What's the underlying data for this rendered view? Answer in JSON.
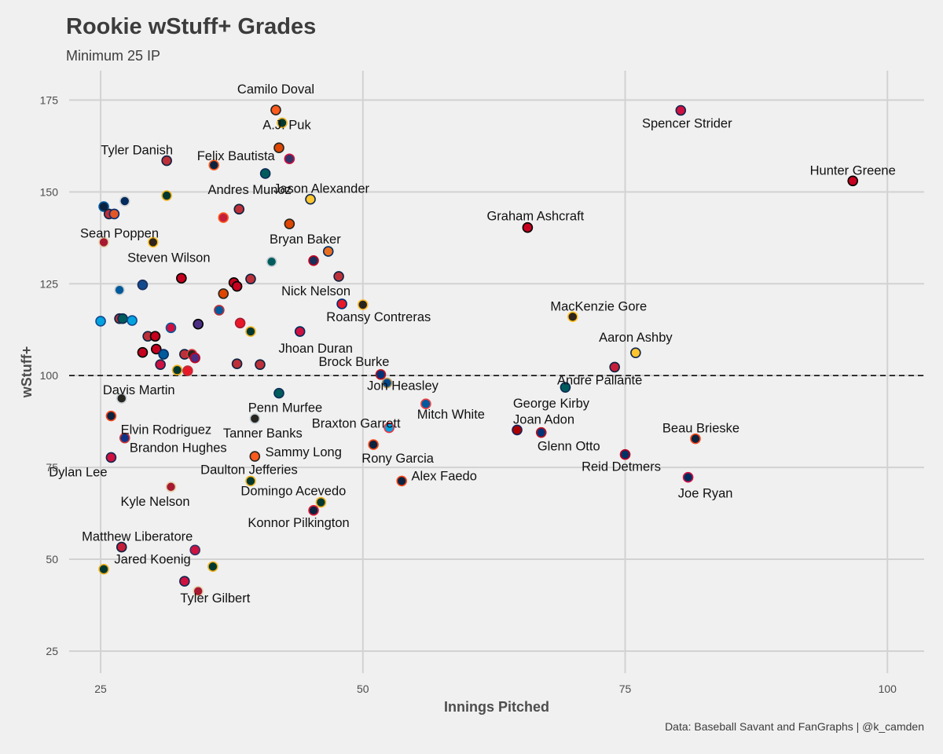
{
  "title": "Rookie wStuff+ Grades",
  "subtitle": "Minimum 25 IP",
  "caption": "Data: Baseball Savant and FanGraphs | @k_camden",
  "chart_data": {
    "type": "scatter",
    "xlabel": "Innings Pitched",
    "ylabel": "wStuff+",
    "xlim": [
      22,
      103.5
    ],
    "ylim": [
      19,
      183
    ],
    "x_ticks": [
      25,
      50,
      75,
      100
    ],
    "y_ticks": [
      25,
      50,
      75,
      100,
      125,
      150,
      175
    ],
    "reference_line": {
      "y": 100,
      "style": "dashed"
    },
    "grid": true,
    "points": [
      {
        "name": "Camilo Doval",
        "x": 41.7,
        "y": 172.3,
        "fill": "#fd5a1e",
        "stroke": "#27251f"
      },
      {
        "name": "A.J. Puk",
        "x": 42.3,
        "y": 168.8,
        "fill": "#003831",
        "stroke": "#efb21e"
      },
      {
        "name": "",
        "x": 42.0,
        "y": 162.0,
        "fill": "#df4601",
        "stroke": "#27251f"
      },
      {
        "name": "",
        "x": 43.0,
        "y": 159.0,
        "fill": "#333366",
        "stroke": "#ce1141"
      },
      {
        "name": "Tyler Danish",
        "x": 31.3,
        "y": 158.5,
        "fill": "#bd3039",
        "stroke": "#0c2340"
      },
      {
        "name": "Felix Bautista",
        "x": 35.8,
        "y": 157.3,
        "fill": "#0c2340",
        "stroke": "#fd5a1e"
      },
      {
        "name": "Andres Munoz",
        "x": 40.7,
        "y": 155.0,
        "fill": "#005c5c",
        "stroke": "#0c2c56"
      },
      {
        "name": "Spencer Strider",
        "x": 80.3,
        "y": 172.2,
        "fill": "#ce1141",
        "stroke": "#13274f"
      },
      {
        "name": "Hunter Greene",
        "x": 96.7,
        "y": 153.0,
        "fill": "#c6011f",
        "stroke": "#000000"
      },
      {
        "name": "",
        "x": 27.3,
        "y": 147.5,
        "fill": "#002b5c",
        "stroke": "#d0d0d0"
      },
      {
        "name": "",
        "x": 31.3,
        "y": 149.0,
        "fill": "#003831",
        "stroke": "#efb21e"
      },
      {
        "name": "Jason Alexander",
        "x": 45.0,
        "y": 148.0,
        "fill": "#ffc52f",
        "stroke": "#12284b"
      },
      {
        "name": "",
        "x": 25.3,
        "y": 146.0,
        "fill": "#0c2340",
        "stroke": "#005a9c"
      },
      {
        "name": "",
        "x": 25.8,
        "y": 144.0,
        "fill": "#bd3039",
        "stroke": "#0c2340"
      },
      {
        "name": "",
        "x": 26.3,
        "y": 144.0,
        "fill": "#e35625",
        "stroke": "#002d72"
      },
      {
        "name": "",
        "x": 38.2,
        "y": 145.3,
        "fill": "#bd3039",
        "stroke": "#0c2340"
      },
      {
        "name": "",
        "x": 36.7,
        "y": 143.0,
        "fill": "#c41e3a",
        "stroke": "#fd5a1e"
      },
      {
        "name": "Bryan Baker",
        "x": 43.0,
        "y": 141.3,
        "fill": "#df4601",
        "stroke": "#27251f"
      },
      {
        "name": "Graham Ashcraft",
        "x": 65.7,
        "y": 140.3,
        "fill": "#c6011f",
        "stroke": "#000000"
      },
      {
        "name": "Sean Poppen",
        "x": 25.3,
        "y": 136.3,
        "fill": "#a71930",
        "stroke": "#e3d4ad"
      },
      {
        "name": "Steven Wilson",
        "x": 30.0,
        "y": 136.3,
        "fill": "#2f241d",
        "stroke": "#ffc425"
      },
      {
        "name": "",
        "x": 46.7,
        "y": 133.8,
        "fill": "#eb6e1f",
        "stroke": "#002d62"
      },
      {
        "name": "",
        "x": 45.3,
        "y": 131.3,
        "fill": "#1a2e5a",
        "stroke": "#c6011f"
      },
      {
        "name": "",
        "x": 41.3,
        "y": 131.0,
        "fill": "#005c5c",
        "stroke": "#c4ced4"
      },
      {
        "name": "",
        "x": 32.7,
        "y": 126.5,
        "fill": "#c6011f",
        "stroke": "#000000"
      },
      {
        "name": "",
        "x": 39.3,
        "y": 126.3,
        "fill": "#bd3039",
        "stroke": "#0c2340"
      },
      {
        "name": "",
        "x": 37.7,
        "y": 125.3,
        "fill": "#c6011f",
        "stroke": "#000000"
      },
      {
        "name": "",
        "x": 38.0,
        "y": 124.3,
        "fill": "#c6011f",
        "stroke": "#000000"
      },
      {
        "name": "",
        "x": 29.0,
        "y": 124.7,
        "fill": "#134a8e",
        "stroke": "#1d2d5c"
      },
      {
        "name": "",
        "x": 26.8,
        "y": 123.3,
        "fill": "#005a9c",
        "stroke": "#d0d0d0"
      },
      {
        "name": "",
        "x": 36.7,
        "y": 122.3,
        "fill": "#df4601",
        "stroke": "#27251f"
      },
      {
        "name": "",
        "x": 47.7,
        "y": 127.0,
        "fill": "#bd3039",
        "stroke": "#0c2340"
      },
      {
        "name": "Nick Nelson",
        "x": 48.0,
        "y": 119.5,
        "fill": "#e81828",
        "stroke": "#002d72"
      },
      {
        "name": "Roansy Contreras",
        "x": 50.0,
        "y": 119.3,
        "fill": "#27251f",
        "stroke": "#fdb827"
      },
      {
        "name": "",
        "x": 36.3,
        "y": 117.8,
        "fill": "#005a9c",
        "stroke": "#bd3039"
      },
      {
        "name": "",
        "x": 25.0,
        "y": 114.8,
        "fill": "#00a3e0",
        "stroke": "#134a8e"
      },
      {
        "name": "",
        "x": 26.8,
        "y": 115.5,
        "fill": "#bd3039",
        "stroke": "#0c2340"
      },
      {
        "name": "",
        "x": 27.1,
        "y": 115.5,
        "fill": "#005c5c",
        "stroke": "#0c2c56"
      },
      {
        "name": "",
        "x": 28.0,
        "y": 115.0,
        "fill": "#00a3e0",
        "stroke": "#134a8e"
      },
      {
        "name": "",
        "x": 31.7,
        "y": 113.0,
        "fill": "#ce1141",
        "stroke": "#005a9c"
      },
      {
        "name": "",
        "x": 34.3,
        "y": 114.0,
        "fill": "#4b2e83",
        "stroke": "#000000"
      },
      {
        "name": "",
        "x": 38.3,
        "y": 114.3,
        "fill": "#e81828",
        "stroke": "#a71930"
      },
      {
        "name": "",
        "x": 39.3,
        "y": 112.0,
        "fill": "#003831",
        "stroke": "#efb21e"
      },
      {
        "name": "Jhoan Duran",
        "x": 44.0,
        "y": 112.0,
        "fill": "#ce1141",
        "stroke": "#002b5c"
      },
      {
        "name": "MacKenzie Gore",
        "x": 70.0,
        "y": 116.0,
        "fill": "#2f241d",
        "stroke": "#ffc425"
      },
      {
        "name": "",
        "x": 29.5,
        "y": 110.7,
        "fill": "#bd3039",
        "stroke": "#0c2340"
      },
      {
        "name": "",
        "x": 30.2,
        "y": 110.7,
        "fill": "#c6011f",
        "stroke": "#000000"
      },
      {
        "name": "",
        "x": 29.0,
        "y": 106.3,
        "fill": "#c6011f",
        "stroke": "#000000"
      },
      {
        "name": "",
        "x": 30.3,
        "y": 107.2,
        "fill": "#c6011f",
        "stroke": "#000000"
      },
      {
        "name": "",
        "x": 30.7,
        "y": 103.0,
        "fill": "#ce1141",
        "stroke": "#13274f"
      },
      {
        "name": "",
        "x": 31.0,
        "y": 105.8,
        "fill": "#005a9c",
        "stroke": "#002d62"
      },
      {
        "name": "",
        "x": 33.0,
        "y": 105.8,
        "fill": "#bd3039",
        "stroke": "#0c2340"
      },
      {
        "name": "",
        "x": 33.7,
        "y": 105.8,
        "fill": "#27251f",
        "stroke": "#e03a3e"
      },
      {
        "name": "",
        "x": 34.0,
        "y": 104.8,
        "fill": "#4b2e83",
        "stroke": "#c6011f"
      },
      {
        "name": "",
        "x": 32.3,
        "y": 101.5,
        "fill": "#003831",
        "stroke": "#efb21e"
      },
      {
        "name": "",
        "x": 33.3,
        "y": 101.3,
        "fill": "#e81828",
        "stroke": "#bd3039"
      },
      {
        "name": "",
        "x": 38.0,
        "y": 103.2,
        "fill": "#bd3039",
        "stroke": "#0c2340"
      },
      {
        "name": "",
        "x": 40.2,
        "y": 103.0,
        "fill": "#bd3039",
        "stroke": "#0c2340"
      },
      {
        "name": "Brock Burke",
        "x": 51.7,
        "y": 100.3,
        "fill": "#003278",
        "stroke": "#c0111f"
      },
      {
        "name": "Aaron Ashby",
        "x": 76.0,
        "y": 106.2,
        "fill": "#ffc52f",
        "stroke": "#12284b"
      },
      {
        "name": "Andre Pallante",
        "x": 74.0,
        "y": 102.3,
        "fill": "#c41e3a",
        "stroke": "#0c2340"
      },
      {
        "name": "George Kirby",
        "x": 69.3,
        "y": 96.8,
        "fill": "#005c5c",
        "stroke": "#0c2c56"
      },
      {
        "name": "Davis Martin",
        "x": 27.0,
        "y": 93.8,
        "fill": "#27251f",
        "stroke": "#c4ced4"
      },
      {
        "name": "Penn Murfee",
        "x": 42.0,
        "y": 95.2,
        "fill": "#005c5c",
        "stroke": "#0c2c56"
      },
      {
        "name": "Jon Heasley",
        "x": 52.3,
        "y": 98.0,
        "fill": "#004687",
        "stroke": "#bd9b60"
      },
      {
        "name": "Mitch White",
        "x": 56.0,
        "y": 92.3,
        "fill": "#005a9c",
        "stroke": "#ef3e42"
      },
      {
        "name": "Elvin Rodriguez",
        "x": 26.0,
        "y": 89.0,
        "fill": "#0c2340",
        "stroke": "#fa4616"
      },
      {
        "name": "Tanner Banks",
        "x": 39.7,
        "y": 88.3,
        "fill": "#27251f",
        "stroke": "#c4ced4"
      },
      {
        "name": "Braxton Garrett",
        "x": 52.5,
        "y": 85.8,
        "fill": "#00a3e0",
        "stroke": "#ef3340"
      },
      {
        "name": "Joan Adon",
        "x": 64.7,
        "y": 85.2,
        "fill": "#ab0003",
        "stroke": "#14225a"
      },
      {
        "name": "Glenn Otto",
        "x": 67.0,
        "y": 84.5,
        "fill": "#003278",
        "stroke": "#c0111f"
      },
      {
        "name": "Brandon Hughes",
        "x": 27.3,
        "y": 83.0,
        "fill": "#0e3386",
        "stroke": "#cc3433"
      },
      {
        "name": "Rony Garcia",
        "x": 51.0,
        "y": 81.2,
        "fill": "#0c2340",
        "stroke": "#fa4616"
      },
      {
        "name": "Beau Brieske",
        "x": 81.7,
        "y": 82.8,
        "fill": "#0c2340",
        "stroke": "#fa4616"
      },
      {
        "name": "Sammy Long",
        "x": 39.7,
        "y": 78.0,
        "fill": "#fd5a1e",
        "stroke": "#27251f"
      },
      {
        "name": "Reid Detmers",
        "x": 75.0,
        "y": 78.5,
        "fill": "#003263",
        "stroke": "#ba0021"
      },
      {
        "name": "Dylan Lee",
        "x": 26.0,
        "y": 77.7,
        "fill": "#ce1141",
        "stroke": "#13274f"
      },
      {
        "name": "Daulton Jefferies",
        "x": 39.3,
        "y": 71.3,
        "fill": "#003831",
        "stroke": "#efb21e"
      },
      {
        "name": "Alex Faedo",
        "x": 53.7,
        "y": 71.3,
        "fill": "#0c2340",
        "stroke": "#fa4616"
      },
      {
        "name": "Joe Ryan",
        "x": 81.0,
        "y": 72.3,
        "fill": "#002b5c",
        "stroke": "#d31145"
      },
      {
        "name": "Kyle Nelson",
        "x": 31.7,
        "y": 69.7,
        "fill": "#a71930",
        "stroke": "#e3d4ad"
      },
      {
        "name": "Domingo Acevedo",
        "x": 46.0,
        "y": 65.5,
        "fill": "#003831",
        "stroke": "#efb21e"
      },
      {
        "name": "Konnor Pilkington",
        "x": 45.3,
        "y": 63.3,
        "fill": "#0c2340",
        "stroke": "#e31937"
      },
      {
        "name": "Matthew Liberatore",
        "x": 27.0,
        "y": 53.3,
        "fill": "#c41e3a",
        "stroke": "#0c2340"
      },
      {
        "name": "",
        "x": 34.0,
        "y": 52.5,
        "fill": "#ce1141",
        "stroke": "#333366"
      },
      {
        "name": "Jared Koenig",
        "x": 25.3,
        "y": 47.3,
        "fill": "#003831",
        "stroke": "#efb21e"
      },
      {
        "name": "",
        "x": 35.7,
        "y": 48.0,
        "fill": "#003831",
        "stroke": "#efb21e"
      },
      {
        "name": "Tyler Gilbert",
        "x": 33.0,
        "y": 44.0,
        "fill": "#ce1141",
        "stroke": "#13274f"
      },
      {
        "name": "",
        "x": 34.3,
        "y": 41.3,
        "fill": "#a71930",
        "stroke": "#e3d4ad"
      }
    ]
  }
}
